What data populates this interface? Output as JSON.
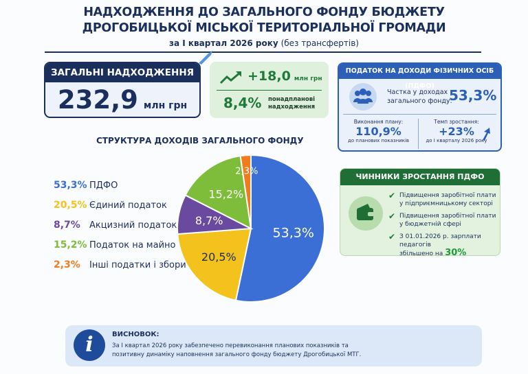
{
  "header": {
    "title_line1": "НАДХОДЖЕННЯ ДО ЗАГАЛЬНОГО ФОНДУ БЮДЖЕТУ",
    "title_line2": "ДРОГОБИЦЬКОЇ МІСЬКОЇ ТЕРИТОРІАЛЬНОЇ ГРОМАДИ",
    "period": "за І квартал 2026 року",
    "period_note": "(без трансфертів)"
  },
  "total": {
    "label": "ЗАГАЛЬНІ НАДХОДЖЕННЯ",
    "value": "232,9",
    "unit": "млн грн"
  },
  "overplan": {
    "value": "+18,0",
    "unit": "млн грн",
    "percent": "8,4%",
    "label_line1": "понадпланові",
    "label_line2": "надходження",
    "icon": "trending-up-icon"
  },
  "pdfo": {
    "title": "ПОДАТОК НА ДОХОДИ ФІЗИЧНИХ ОСІБ (ПДФО)",
    "share_label_line1": "Частка у доходах",
    "share_label_line2": "загального фонду:",
    "share_value": "53,3%",
    "plan_label": "Виконання плану:",
    "plan_value": "110,9%",
    "plan_note": "до планових показників",
    "growth_label": "Темп зростання:",
    "growth_value": "+23%",
    "growth_note": "до І кварталу 2026 року",
    "icon": "people-icon"
  },
  "factors": {
    "title": "ЧИННИКИ ЗРОСТАННЯ ПДФО",
    "icon": "wallet-icon",
    "items": [
      {
        "line1": "Підвищення заробітної плати",
        "line2": "у підприємницькому секторі"
      },
      {
        "line1": "Підвищення заробітної плати",
        "line2": "у бюджетній сфері"
      },
      {
        "line1": "З 01.01.2026 р. зарплати педагогів",
        "line2": "збільшено на",
        "highlight": "30%"
      }
    ]
  },
  "chart_data": {
    "type": "pie",
    "title": "СТРУКТУРА ДОХОДІВ ЗАГАЛЬНОГО ФОНДУ",
    "categories": [
      "ПДФО",
      "Єдиний податок",
      "Акцизний податок",
      "Податок на майно",
      "Інші податки і збори"
    ],
    "values": [
      53.3,
      20.5,
      8.7,
      15.2,
      2.3
    ],
    "labels": [
      "53,3%",
      "20,5%",
      "8,7%",
      "15,2%",
      "2,3%"
    ],
    "colors": [
      "#3b6fd6",
      "#f3c21c",
      "#6a4a9e",
      "#7dbd3a",
      "#f27b1d"
    ],
    "legend": "left"
  },
  "conclusion": {
    "title": "ВИСНОВОК:",
    "line1": "За І квартал 2026 року забезпечено перевиконання планових показників та",
    "line2": "позитивну динаміку наповнення загального фонду бюджету Дрогобицької МТГ.",
    "icon": "info-icon"
  }
}
